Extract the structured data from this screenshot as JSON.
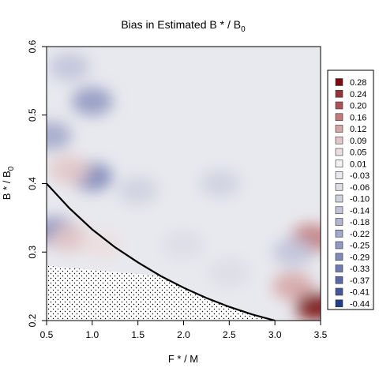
{
  "chart_data": {
    "type": "heatmap",
    "title": "Bias in Estimated B * / B",
    "title_sub": "0",
    "xlabel": "F * / M",
    "ylabel": "B * / B",
    "ylabel_sub": "0",
    "xlim": [
      0.5,
      3.5
    ],
    "ylim": [
      0.2,
      0.6
    ],
    "x_ticks": [
      "0.5",
      "1.0",
      "1.5",
      "2.0",
      "2.5",
      "3.0",
      "3.5"
    ],
    "y_ticks": [
      "0.2",
      "0.3",
      "0.4",
      "0.5",
      "0.6"
    ],
    "grid": false,
    "legend_position": "right",
    "legend": [
      {
        "label": "0.28",
        "color": "#7a0c12"
      },
      {
        "label": "0.24",
        "color": "#953336"
      },
      {
        "label": "0.20",
        "color": "#ad5256"
      },
      {
        "label": "0.16",
        "color": "#c27a7c"
      },
      {
        "label": "0.12",
        "color": "#d6a6a7"
      },
      {
        "label": "0.09",
        "color": "#e3c7c8"
      },
      {
        "label": "0.05",
        "color": "#ecdfdf"
      },
      {
        "label": "0.01",
        "color": "#f3f1f1"
      },
      {
        "label": "-0.03",
        "color": "#e8e9ee"
      },
      {
        "label": "-0.06",
        "color": "#dcdde7"
      },
      {
        "label": "-0.10",
        "color": "#cfd1e1"
      },
      {
        "label": "-0.14",
        "color": "#c1c4da"
      },
      {
        "label": "-0.18",
        "color": "#b2b6d2"
      },
      {
        "label": "-0.22",
        "color": "#a2a8ca"
      },
      {
        "label": "-0.25",
        "color": "#9299c2"
      },
      {
        "label": "-0.29",
        "color": "#818aba"
      },
      {
        "label": "-0.33",
        "color": "#6e7ab1"
      },
      {
        "label": "-0.37",
        "color": "#5b69a8"
      },
      {
        "label": "-0.41",
        "color": "#45579c"
      },
      {
        "label": "-0.44",
        "color": "#1f3f8c"
      }
    ],
    "background_value": -0.03,
    "regions": [
      {
        "x": 0.75,
        "y": 0.57,
        "value": -0.14
      },
      {
        "x": 1.0,
        "y": 0.52,
        "value": -0.25
      },
      {
        "x": 1.0,
        "y": 0.41,
        "value": -0.29
      },
      {
        "x": 0.6,
        "y": 0.33,
        "value": -0.29
      },
      {
        "x": 0.55,
        "y": 0.47,
        "value": -0.22
      },
      {
        "x": 0.75,
        "y": 0.42,
        "value": 0.09
      },
      {
        "x": 0.75,
        "y": 0.32,
        "value": 0.09
      },
      {
        "x": 1.1,
        "y": 0.31,
        "value": 0.05
      },
      {
        "x": 1.5,
        "y": 0.39,
        "value": -0.1
      },
      {
        "x": 2.4,
        "y": 0.4,
        "value": -0.1
      },
      {
        "x": 2.0,
        "y": 0.31,
        "value": -0.06
      },
      {
        "x": 3.4,
        "y": 0.32,
        "value": 0.16
      },
      {
        "x": 3.2,
        "y": 0.25,
        "value": 0.12
      },
      {
        "x": 3.45,
        "y": 0.22,
        "value": 0.28
      },
      {
        "x": 2.9,
        "y": 0.5,
        "value": -0.03
      },
      {
        "x": 3.2,
        "y": 0.3,
        "value": -0.14
      },
      {
        "x": 2.5,
        "y": 0.27,
        "value": -0.06
      }
    ],
    "boundary_curve": {
      "x": [
        0.5,
        0.75,
        1.0,
        1.25,
        1.5,
        1.75,
        2.0,
        2.25,
        2.5,
        2.75,
        3.0
      ],
      "y": [
        0.4,
        0.364,
        0.333,
        0.307,
        0.285,
        0.265,
        0.248,
        0.233,
        0.22,
        0.209,
        0.2
      ]
    },
    "stippled_region_top_y": 0.28
  }
}
